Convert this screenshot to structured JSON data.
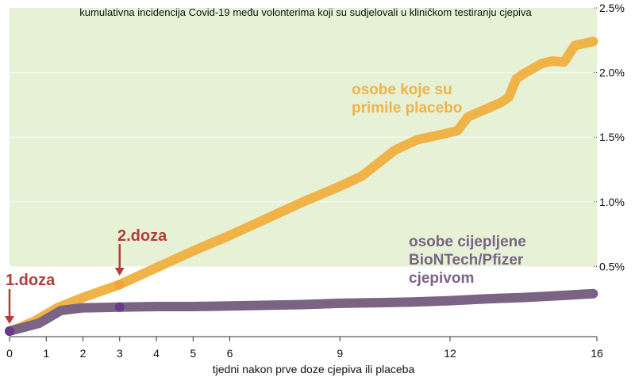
{
  "chart_data": {
    "type": "line",
    "title": "kumulativna incidencija Covid-19 među volonterima koji su sudjelovali u kliničkom testiranju cjepiva",
    "xlabel": "tjedni nakon prve doze cjepiva ili placeba",
    "ylabel": "",
    "xlim": [
      0,
      16
    ],
    "ylim": [
      0,
      2.5
    ],
    "x_ticks": [
      0,
      1,
      2,
      3,
      4,
      5,
      6,
      9,
      12,
      16
    ],
    "y_ticks": [
      {
        "value": 0.5,
        "label": "0.5%"
      },
      {
        "value": 1.0,
        "label": "1.0%"
      },
      {
        "value": 1.5,
        "label": "1.5%"
      },
      {
        "value": 2.0,
        "label": "2.0%"
      },
      {
        "value": 2.5,
        "label": "2.5%"
      }
    ],
    "shaded_band": {
      "from": 0.5,
      "to": 2.5,
      "color": "#e6f1d6"
    },
    "series": [
      {
        "name": "osobe koje su primile placebo",
        "label_lines": [
          "osobe koje su",
          "primile placebo"
        ],
        "color": "#f0b347",
        "label_color": "#f0b347",
        "x": [
          0,
          0.3,
          0.7,
          1.3,
          2,
          3,
          4,
          5,
          6,
          7,
          8,
          9,
          9.6,
          10.5,
          11.1,
          11.9,
          12.2,
          12.5,
          13,
          13.4,
          13.6,
          13.8,
          14,
          14.5,
          14.8,
          15.1,
          15.4,
          15.9
        ],
        "values": [
          0,
          0.03,
          0.08,
          0.18,
          0.26,
          0.36,
          0.49,
          0.62,
          0.74,
          0.87,
          1.0,
          1.12,
          1.2,
          1.4,
          1.48,
          1.53,
          1.55,
          1.66,
          1.72,
          1.77,
          1.81,
          1.95,
          1.99,
          2.07,
          2.09,
          2.08,
          2.21,
          2.24
        ]
      },
      {
        "name": "osobe cijepljene BioNTech/Pfizer cjepivom",
        "label_lines": [
          "osobe cijepljene",
          "BioNTech/Pfizer",
          "cjepivom"
        ],
        "color": "#7a6383",
        "label_color": "#7a6383",
        "x": [
          0,
          0.8,
          1.4,
          2,
          3,
          4,
          5,
          6,
          7,
          8,
          9,
          10,
          11,
          12,
          13,
          14,
          15,
          15.9
        ],
        "values": [
          0,
          0.06,
          0.16,
          0.18,
          0.185,
          0.19,
          0.19,
          0.195,
          0.2,
          0.205,
          0.215,
          0.22,
          0.225,
          0.235,
          0.25,
          0.26,
          0.275,
          0.29
        ]
      }
    ],
    "annotations": [
      {
        "text": "1.doza",
        "x": 0,
        "color": "#b63a3a",
        "point_color": "#6a3a8a"
      },
      {
        "text": "2.doza",
        "x": 3,
        "color": "#b63a3a",
        "placebo_point_color": "#f5a23a",
        "vaccine_point_color": "#6a3a8a"
      }
    ],
    "grid": false,
    "legend": "inline labels"
  }
}
